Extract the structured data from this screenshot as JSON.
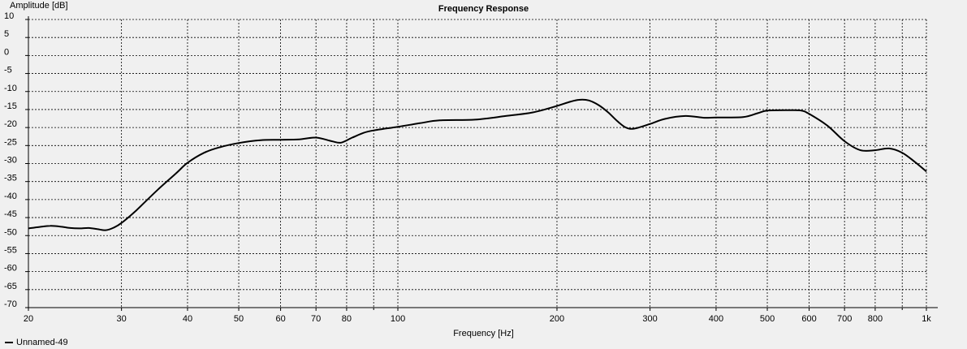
{
  "chart_data": {
    "type": "line",
    "title": "Frequency Response",
    "xlabel": "Frequency [Hz]",
    "ylabel": "Amplitude [dB]",
    "xscale": "log",
    "xlim": [
      20,
      1000
    ],
    "ylim": [
      -70,
      10
    ],
    "grid": true,
    "legend_position": "bottom-left",
    "x_tick_values": [
      20,
      30,
      40,
      50,
      60,
      70,
      80,
      100,
      200,
      300,
      400,
      500,
      600,
      700,
      800,
      1000
    ],
    "x_tick_labels": [
      "20",
      "30",
      "40",
      "50",
      "60",
      "70",
      "80",
      "100",
      "200",
      "300",
      "400",
      "500",
      "600",
      "700",
      "800",
      "1k"
    ],
    "x_minor_gridlines": [
      90,
      900
    ],
    "y_ticks": [
      10,
      5,
      0,
      -5,
      -10,
      -15,
      -20,
      -25,
      -30,
      -35,
      -40,
      -45,
      -50,
      -55,
      -60,
      -65,
      -70
    ],
    "series": [
      {
        "name": "Unnamed-49",
        "color": "#000000",
        "x": [
          20,
          21,
          22,
          23,
          24,
          25,
          26,
          27,
          28,
          29,
          30,
          32,
          35,
          38,
          40,
          43,
          46,
          50,
          55,
          60,
          65,
          70,
          75,
          78,
          82,
          86,
          90,
          100,
          110,
          120,
          140,
          160,
          180,
          200,
          210,
          220,
          230,
          240,
          250,
          260,
          270,
          280,
          300,
          320,
          350,
          380,
          400,
          450,
          480,
          500,
          550,
          580,
          600,
          650,
          700,
          750,
          800,
          850,
          900,
          950,
          1000
        ],
        "y": [
          -48,
          -47.6,
          -47.3,
          -47.5,
          -47.9,
          -48,
          -47.9,
          -48.2,
          -48.5,
          -47.8,
          -46.5,
          -43,
          -37.5,
          -32.8,
          -29.8,
          -27,
          -25.5,
          -24.3,
          -23.5,
          -23.4,
          -23.3,
          -22.8,
          -23.8,
          -24.2,
          -22.8,
          -21.5,
          -20.8,
          -19.8,
          -18.8,
          -18,
          -17.8,
          -16.8,
          -15.8,
          -14,
          -13,
          -12.3,
          -12.5,
          -13.8,
          -15.8,
          -18.2,
          -20,
          -20.3,
          -19,
          -17.6,
          -16.8,
          -17.3,
          -17.2,
          -17.1,
          -16,
          -15.3,
          -15.2,
          -15.3,
          -16.2,
          -19.5,
          -23.8,
          -26.3,
          -26.3,
          -25.8,
          -27,
          -29.5,
          -32.2
        ]
      }
    ]
  },
  "legend": {
    "items": [
      {
        "label": "Unnamed-49",
        "color": "#000000"
      }
    ]
  }
}
